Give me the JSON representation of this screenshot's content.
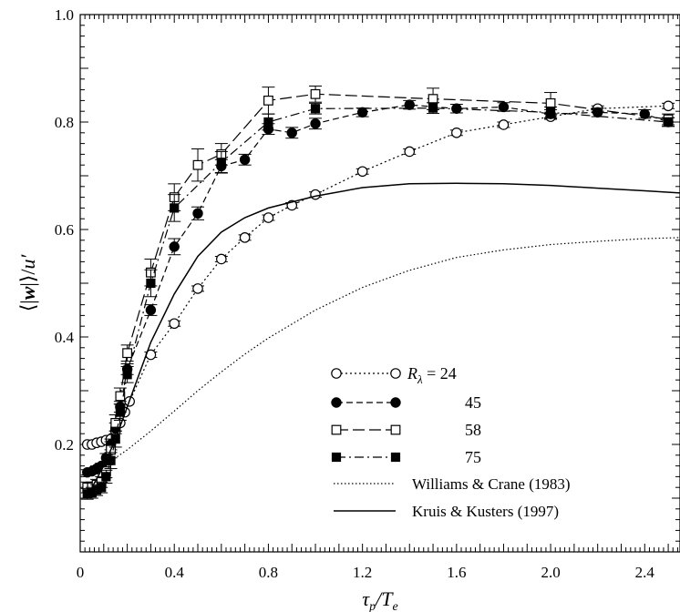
{
  "chart_data": {
    "type": "line",
    "title": "",
    "xlabel": "τ_p/T_e",
    "ylabel": "⟨|w|⟩/u′",
    "xlim": [
      0,
      2.55
    ],
    "ylim": [
      0,
      1.0
    ],
    "xticks": [
      0,
      0.4,
      0.8,
      1.2,
      1.6,
      2.0,
      2.4
    ],
    "xtick_labels": [
      "0",
      "0.4",
      "0.8",
      "1.2",
      "1.6",
      "2.0",
      "2.4"
    ],
    "yticks": [
      0.2,
      0.4,
      0.6,
      0.8,
      1.0
    ],
    "ytick_labels": [
      "0.2",
      "0.4",
      "0.6",
      "0.8",
      "1.0"
    ],
    "grid": false,
    "legend_position": "bottom-right",
    "legend_label_prefix": "R",
    "legend_label_subscript": "λ",
    "legend_label_eq": " = ",
    "series": [
      {
        "name": "24",
        "marker": "open-circle",
        "dash": "dotted",
        "color": "#000000",
        "x": [
          0.03,
          0.05,
          0.07,
          0.09,
          0.11,
          0.13,
          0.15,
          0.17,
          0.19,
          0.21,
          0.3,
          0.4,
          0.5,
          0.6,
          0.7,
          0.8,
          0.9,
          1.0,
          1.2,
          1.4,
          1.6,
          1.8,
          2.0,
          2.2,
          2.5
        ],
        "y": [
          0.2,
          0.2,
          0.203,
          0.205,
          0.208,
          0.21,
          0.225,
          0.24,
          0.26,
          0.28,
          0.367,
          0.425,
          0.49,
          0.545,
          0.585,
          0.622,
          0.645,
          0.665,
          0.708,
          0.745,
          0.78,
          0.795,
          0.81,
          0.825,
          0.83
        ],
        "err": [
          0,
          0,
          0,
          0,
          0,
          0,
          0,
          0,
          0,
          0,
          0.005,
          0.005,
          0.005,
          0.005,
          0.005,
          0.005,
          0.005,
          0.005,
          0.005,
          0.005,
          0.005,
          0.005,
          0.005,
          0.005,
          0.005
        ]
      },
      {
        "name": "45",
        "marker": "filled-circle",
        "dash": "dashed",
        "color": "#000000",
        "x": [
          0.03,
          0.05,
          0.07,
          0.09,
          0.11,
          0.13,
          0.15,
          0.17,
          0.2,
          0.3,
          0.4,
          0.5,
          0.6,
          0.7,
          0.8,
          0.9,
          1.0,
          1.2,
          1.4,
          1.6,
          1.8,
          2.0,
          2.2,
          2.4,
          2.5
        ],
        "y": [
          0.148,
          0.15,
          0.155,
          0.16,
          0.175,
          0.2,
          0.23,
          0.27,
          0.34,
          0.45,
          0.568,
          0.63,
          0.718,
          0.73,
          0.787,
          0.78,
          0.797,
          0.818,
          0.832,
          0.825,
          0.828,
          0.815,
          0.818,
          0.815,
          0.8
        ],
        "err": [
          0.005,
          0.005,
          0.005,
          0.005,
          0.008,
          0.01,
          0.01,
          0.01,
          0.01,
          0.01,
          0.015,
          0.012,
          0.012,
          0.01,
          0.01,
          0.01,
          0.01,
          0.008,
          0.008,
          0.008,
          0.008,
          0.008,
          0.008,
          0.008,
          0.008
        ]
      },
      {
        "name": "58",
        "marker": "open-square",
        "dash": "longdash",
        "color": "#000000",
        "x": [
          0.03,
          0.05,
          0.07,
          0.09,
          0.11,
          0.13,
          0.15,
          0.17,
          0.2,
          0.3,
          0.4,
          0.5,
          0.6,
          0.8,
          1.0,
          1.5,
          2.0,
          2.5
        ],
        "y": [
          0.12,
          0.12,
          0.125,
          0.13,
          0.15,
          0.19,
          0.24,
          0.29,
          0.37,
          0.52,
          0.66,
          0.72,
          0.74,
          0.84,
          0.852,
          0.843,
          0.835,
          0.805
        ],
        "err": [
          0.01,
          0.01,
          0.01,
          0.01,
          0.012,
          0.015,
          0.015,
          0.015,
          0.015,
          0.025,
          0.025,
          0.03,
          0.02,
          0.025,
          0.015,
          0.02,
          0.02,
          0.01
        ]
      },
      {
        "name": "75",
        "marker": "filled-square",
        "dash": "dashdot",
        "color": "#000000",
        "x": [
          0.03,
          0.05,
          0.07,
          0.09,
          0.11,
          0.13,
          0.15,
          0.17,
          0.2,
          0.3,
          0.4,
          0.6,
          0.8,
          1.0,
          1.5,
          2.0,
          2.5
        ],
        "y": [
          0.108,
          0.11,
          0.115,
          0.12,
          0.14,
          0.17,
          0.21,
          0.26,
          0.33,
          0.5,
          0.64,
          0.725,
          0.8,
          0.825,
          0.826,
          0.818,
          0.8
        ],
        "err": [
          0.01,
          0.01,
          0.01,
          0.01,
          0.012,
          0.015,
          0.015,
          0.015,
          0.015,
          0.025,
          0.025,
          0.02,
          0.015,
          0.01,
          0.01,
          0.01,
          0.008
        ]
      },
      {
        "name": "Williams & Crane (1983)",
        "marker": "none",
        "dash": "finedot",
        "color": "#000000",
        "x": [
          0.05,
          0.1,
          0.15,
          0.2,
          0.3,
          0.4,
          0.5,
          0.6,
          0.7,
          0.8,
          1.0,
          1.2,
          1.4,
          1.6,
          1.8,
          2.0,
          2.2,
          2.4,
          2.55
        ],
        "y": [
          0.15,
          0.16,
          0.175,
          0.19,
          0.225,
          0.262,
          0.3,
          0.335,
          0.368,
          0.398,
          0.45,
          0.492,
          0.524,
          0.548,
          0.562,
          0.572,
          0.578,
          0.583,
          0.585
        ]
      },
      {
        "name": "Kruis & Kusters (1997)",
        "marker": "none",
        "dash": "solid",
        "color": "#000000",
        "x": [
          0.05,
          0.1,
          0.15,
          0.2,
          0.25,
          0.3,
          0.4,
          0.5,
          0.6,
          0.7,
          0.8,
          1.0,
          1.2,
          1.4,
          1.6,
          1.8,
          2.0,
          2.2,
          2.4,
          2.55
        ],
        "y": [
          0.12,
          0.16,
          0.21,
          0.27,
          0.33,
          0.39,
          0.48,
          0.55,
          0.595,
          0.622,
          0.64,
          0.662,
          0.678,
          0.685,
          0.686,
          0.685,
          0.682,
          0.677,
          0.672,
          0.668
        ]
      }
    ]
  }
}
